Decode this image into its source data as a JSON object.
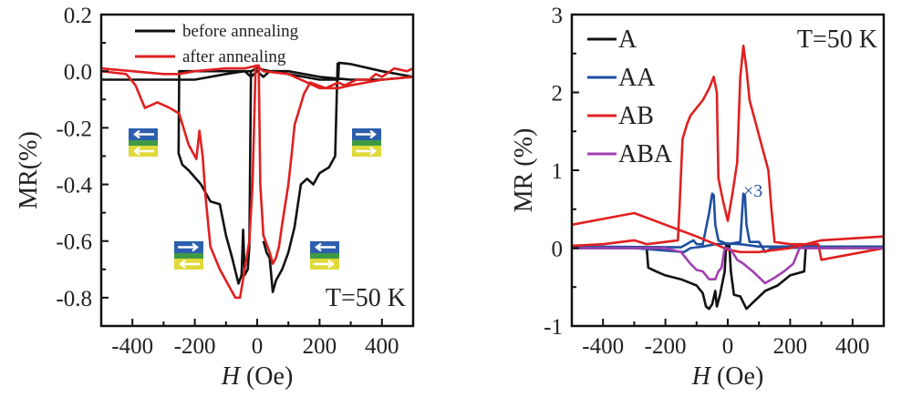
{
  "chart_data": [
    {
      "type": "line",
      "title": "",
      "xlabel_italic": "H",
      "xlabel_rest": " (Oe)",
      "ylabel": "MR(%)",
      "xlim": [
        -500,
        500
      ],
      "ylim": [
        -0.9,
        0.2
      ],
      "xticks": [
        -400,
        -200,
        0,
        200,
        400
      ],
      "yticks": [
        0.2,
        0.0,
        -0.2,
        -0.4,
        -0.6,
        -0.8
      ],
      "ytick_labels": [
        "0.2",
        "0.0",
        "-0.2",
        "-0.4",
        "-0.6",
        "-0.8"
      ],
      "annotation": "T=50 K",
      "legend_position": "top-center",
      "series": [
        {
          "name": "before annealing",
          "color": "#111111",
          "points": [
            [
              -500,
              -0.03
            ],
            [
              -300,
              -0.03
            ],
            [
              -200,
              -0.03
            ],
            [
              -100,
              -0.01
            ],
            [
              -40,
              0.0
            ],
            [
              -20,
              0.0
            ],
            [
              0,
              0.01
            ],
            [
              40,
              0.0
            ],
            [
              100,
              -0.01
            ],
            [
              200,
              -0.03
            ],
            [
              250,
              -0.03
            ],
            [
              260,
              -0.03
            ],
            [
              262,
              0.03
            ],
            [
              300,
              0.025
            ],
            [
              400,
              0.0
            ],
            [
              500,
              -0.02
            ],
            null,
            [
              500,
              -0.02
            ],
            [
              400,
              -0.03
            ],
            [
              300,
              -0.03
            ],
            [
              200,
              -0.02
            ],
            [
              100,
              0.0
            ],
            [
              40,
              0.0
            ],
            [
              20,
              -0.02
            ],
            [
              0,
              0.0
            ],
            [
              -20,
              -0.02
            ],
            [
              -40,
              0.0
            ],
            [
              -100,
              0.0
            ],
            [
              -200,
              0.0
            ],
            [
              -250,
              0.0
            ],
            [
              -252,
              -0.29
            ],
            [
              -240,
              -0.33
            ],
            [
              -220,
              -0.35
            ],
            [
              -180,
              -0.4
            ],
            [
              -150,
              -0.46
            ],
            [
              -120,
              -0.47
            ],
            [
              -100,
              -0.58
            ],
            [
              -80,
              -0.66
            ],
            [
              -60,
              -0.75
            ],
            [
              -50,
              -0.72
            ],
            [
              -45,
              -0.56
            ],
            [
              -40,
              -0.72
            ],
            [
              -30,
              -0.7
            ],
            [
              -25,
              -0.62
            ],
            [
              -20,
              0.0
            ],
            null,
            [
              20,
              -0.6
            ],
            [
              30,
              -0.64
            ],
            [
              40,
              -0.66
            ],
            [
              50,
              -0.78
            ],
            [
              60,
              -0.74
            ],
            [
              80,
              -0.7
            ],
            [
              100,
              -0.64
            ],
            [
              120,
              -0.55
            ],
            [
              140,
              -0.4
            ],
            [
              160,
              -0.38
            ],
            [
              180,
              -0.4
            ],
            [
              200,
              -0.36
            ],
            [
              230,
              -0.34
            ],
            [
              250,
              -0.3
            ],
            [
              258,
              0.03
            ]
          ]
        },
        {
          "name": "after annealing",
          "color": "#e02020",
          "points": [
            [
              -500,
              0.01
            ],
            [
              -400,
              0.0
            ],
            [
              -300,
              -0.01
            ],
            [
              -250,
              -0.01
            ],
            [
              -200,
              0.0
            ],
            [
              -100,
              0.01
            ],
            [
              -40,
              0.01
            ],
            [
              0,
              0.02
            ],
            [
              20,
              0.0
            ],
            [
              100,
              -0.01
            ],
            [
              160,
              -0.04
            ],
            [
              200,
              -0.06
            ],
            [
              260,
              -0.06
            ],
            [
              300,
              -0.05
            ],
            [
              400,
              -0.03
            ],
            [
              500,
              -0.02
            ],
            null,
            [
              500,
              0.01
            ],
            [
              480,
              0.0
            ],
            [
              440,
              0.01
            ],
            [
              400,
              -0.02
            ],
            [
              380,
              -0.01
            ],
            [
              360,
              -0.03
            ],
            [
              320,
              -0.03
            ],
            [
              280,
              -0.05
            ],
            [
              260,
              -0.04
            ],
            [
              220,
              -0.06
            ],
            [
              170,
              -0.04
            ],
            [
              150,
              -0.08
            ],
            [
              120,
              -0.19
            ],
            [
              110,
              -0.3
            ],
            [
              100,
              -0.4
            ],
            [
              80,
              -0.54
            ],
            [
              70,
              -0.62
            ],
            [
              60,
              -0.66
            ],
            [
              50,
              -0.68
            ],
            [
              40,
              -0.64
            ],
            [
              20,
              -0.58
            ],
            [
              10,
              -0.4
            ],
            [
              5,
              0.02
            ],
            [
              0,
              0.02
            ],
            [
              -5,
              0.02
            ],
            [
              -15,
              -0.4
            ],
            [
              -25,
              -0.6
            ],
            [
              -40,
              -0.7
            ],
            [
              -55,
              -0.8
            ],
            [
              -70,
              -0.8
            ],
            [
              -90,
              -0.76
            ],
            [
              -120,
              -0.7
            ],
            [
              -150,
              -0.62
            ],
            [
              -165,
              -0.45
            ],
            [
              -175,
              -0.3
            ],
            [
              -185,
              -0.21
            ],
            [
              -195,
              -0.31
            ],
            [
              -220,
              -0.26
            ],
            [
              -250,
              -0.15
            ],
            [
              -280,
              -0.13
            ],
            [
              -320,
              -0.11
            ],
            [
              -360,
              -0.13
            ],
            [
              -390,
              -0.05
            ],
            [
              -420,
              -0.01
            ],
            [
              -500,
              0.0
            ]
          ]
        }
      ]
    },
    {
      "type": "line",
      "title": "",
      "xlabel_italic": "H",
      "xlabel_rest": " (Oe)",
      "ylabel": "MR (%)",
      "xlim": [
        -500,
        500
      ],
      "ylim": [
        -1,
        3
      ],
      "xticks": [
        -400,
        -200,
        0,
        200,
        400
      ],
      "yticks": [
        3,
        2,
        1,
        0,
        -1
      ],
      "ytick_labels": [
        "3",
        "2",
        "1",
        "0",
        "-1"
      ],
      "annotation": "T=50 K",
      "inline_label": "×3",
      "legend_position": "top-left",
      "series": [
        {
          "name": "A",
          "color": "#111111",
          "points": [
            [
              -500,
              0.0
            ],
            [
              -260,
              0.0
            ],
            [
              -255,
              -0.25
            ],
            [
              -230,
              -0.3
            ],
            [
              -200,
              -0.35
            ],
            [
              -150,
              -0.4
            ],
            [
              -100,
              -0.48
            ],
            [
              -80,
              -0.58
            ],
            [
              -70,
              -0.75
            ],
            [
              -60,
              -0.78
            ],
            [
              -50,
              -0.72
            ],
            [
              -40,
              -0.55
            ],
            [
              -35,
              -0.75
            ],
            [
              -25,
              -0.6
            ],
            [
              -10,
              -0.3
            ],
            [
              -5,
              0.05
            ],
            [
              0,
              0.0
            ],
            [
              5,
              0.05
            ],
            [
              10,
              -0.3
            ],
            [
              20,
              -0.6
            ],
            [
              40,
              -0.62
            ],
            [
              60,
              -0.78
            ],
            [
              80,
              -0.7
            ],
            [
              120,
              -0.55
            ],
            [
              160,
              -0.48
            ],
            [
              200,
              -0.35
            ],
            [
              245,
              -0.3
            ],
            [
              250,
              0.0
            ],
            [
              500,
              0.0
            ]
          ]
        },
        {
          "name": "AA",
          "color": "#1f4fa0",
          "points": [
            [
              -500,
              0.02
            ],
            [
              -150,
              0.01
            ],
            [
              -110,
              0.1
            ],
            [
              -100,
              0.05
            ],
            [
              -80,
              0.05
            ],
            [
              -60,
              0.45
            ],
            [
              -50,
              0.7
            ],
            [
              -45,
              0.68
            ],
            [
              -40,
              0.3
            ],
            [
              -30,
              0.1
            ],
            [
              0,
              0.05
            ],
            [
              40,
              0.08
            ],
            [
              50,
              0.7
            ],
            [
              55,
              0.68
            ],
            [
              60,
              0.3
            ],
            [
              70,
              0.08
            ],
            [
              100,
              0.08
            ],
            [
              120,
              -0.05
            ],
            [
              140,
              0.0
            ],
            [
              500,
              0.02
            ],
            null,
            [
              -500,
              0.0
            ],
            [
              -300,
              0.0
            ],
            [
              -140,
              -0.05
            ],
            [
              -120,
              0.0
            ],
            [
              -80,
              0.02
            ],
            [
              -40,
              0.05
            ],
            [
              0,
              0.06
            ],
            [
              40,
              0.05
            ],
            [
              100,
              0.02
            ],
            [
              200,
              0.02
            ],
            [
              500,
              0.02
            ]
          ]
        },
        {
          "name": "AB",
          "color": "#e02020",
          "points": [
            [
              -500,
              0.3
            ],
            [
              -300,
              0.45
            ],
            [
              -200,
              0.3
            ],
            [
              -100,
              0.15
            ],
            [
              -40,
              0.05
            ],
            [
              0,
              -0.02
            ],
            [
              40,
              -0.05
            ],
            [
              100,
              -0.05
            ],
            [
              200,
              0.0
            ],
            [
              300,
              0.1
            ],
            [
              500,
              0.15
            ],
            null,
            [
              500,
              0.0
            ],
            [
              300,
              -0.15
            ],
            [
              290,
              0.05
            ],
            [
              200,
              0.05
            ],
            [
              150,
              0.08
            ],
            [
              140,
              0.5
            ],
            [
              130,
              1.0
            ],
            [
              110,
              1.3
            ],
            [
              90,
              1.6
            ],
            [
              70,
              1.9
            ],
            [
              60,
              2.3
            ],
            [
              50,
              2.6
            ],
            [
              40,
              2.2
            ],
            [
              30,
              1.1
            ],
            [
              15,
              0.7
            ],
            [
              0,
              0.35
            ],
            [
              -15,
              0.6
            ],
            [
              -30,
              0.9
            ],
            [
              -35,
              2.0
            ],
            [
              -45,
              2.2
            ],
            [
              -60,
              2.05
            ],
            [
              -80,
              1.9
            ],
            [
              -120,
              1.7
            ],
            [
              -130,
              1.6
            ],
            [
              -145,
              1.4
            ],
            [
              -155,
              0.5
            ],
            [
              -160,
              0.1
            ],
            [
              -200,
              0.08
            ],
            [
              -260,
              0.05
            ],
            [
              -300,
              0.1
            ],
            [
              -400,
              0.05
            ],
            [
              -500,
              0.03
            ]
          ]
        },
        {
          "name": "ABA",
          "color": "#a040b0",
          "points": [
            [
              -500,
              0.0
            ],
            [
              -200,
              0.0
            ],
            [
              -150,
              -0.05
            ],
            [
              -120,
              -0.2
            ],
            [
              -100,
              -0.28
            ],
            [
              -80,
              -0.3
            ],
            [
              -60,
              -0.4
            ],
            [
              -40,
              -0.4
            ],
            [
              -30,
              -0.3
            ],
            [
              -20,
              -0.25
            ],
            [
              -10,
              0.0
            ],
            [
              0,
              0.0
            ],
            [
              10,
              -0.02
            ],
            [
              30,
              -0.15
            ],
            [
              50,
              -0.2
            ],
            [
              80,
              -0.3
            ],
            [
              120,
              -0.45
            ],
            [
              150,
              -0.38
            ],
            [
              180,
              -0.3
            ],
            [
              210,
              -0.2
            ],
            [
              230,
              0.0
            ],
            [
              500,
              0.0
            ]
          ]
        }
      ]
    }
  ]
}
